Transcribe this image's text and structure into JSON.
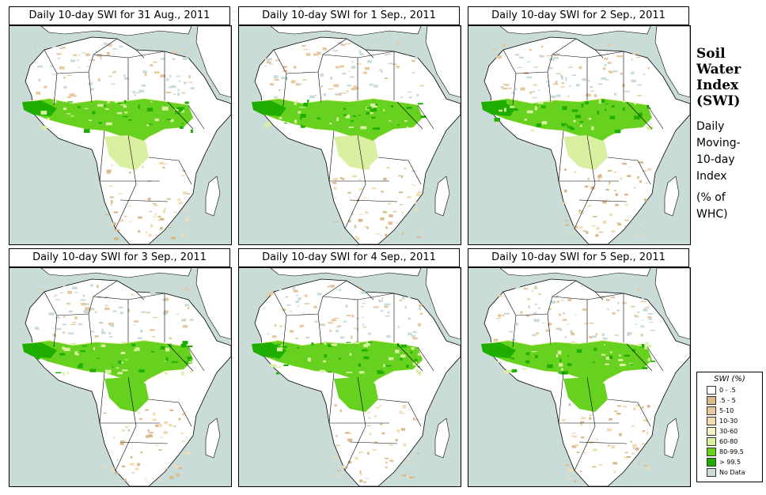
{
  "panels": [
    {
      "title": "Daily 10-day SWI for  31 Aug., 2011"
    },
    {
      "title": "Daily 10-day SWI for  1 Sep., 2011"
    },
    {
      "title": "Daily 10-day SWI for  2 Sep., 2011"
    },
    {
      "title": "Daily 10-day SWI for  3 Sep., 2011"
    },
    {
      "title": "Daily 10-day SWI for  4 Sep., 2011"
    },
    {
      "title": "Daily 10-day SWI for  5 Sep., 2011"
    }
  ],
  "side": {
    "title_lines": [
      "Soil",
      "Water",
      "Index",
      "(SWI)"
    ],
    "sub_lines": [
      "Daily",
      "Moving-",
      "10-day",
      "Index"
    ],
    "unit_lines": [
      "(% of",
      " WHC)"
    ]
  },
  "legend": {
    "title": "SWI (%)",
    "items": [
      {
        "label": "0 - .5",
        "color": "#ffffff"
      },
      {
        "label": ".5 - 5",
        "color": "#d8b98a"
      },
      {
        "label": "5-10",
        "color": "#e6c99e"
      },
      {
        "label": "10-30",
        "color": "#f2dcb4"
      },
      {
        "label": "30-60",
        "color": "#f7f0c4"
      },
      {
        "label": "60-80",
        "color": "#d9f0a0"
      },
      {
        "label": "80-99.5",
        "color": "#66d11e"
      },
      {
        "label": "> 99.5",
        "color": "#1fae00"
      },
      {
        "label": "No Data",
        "color": "#c9dcd8"
      }
    ]
  }
}
